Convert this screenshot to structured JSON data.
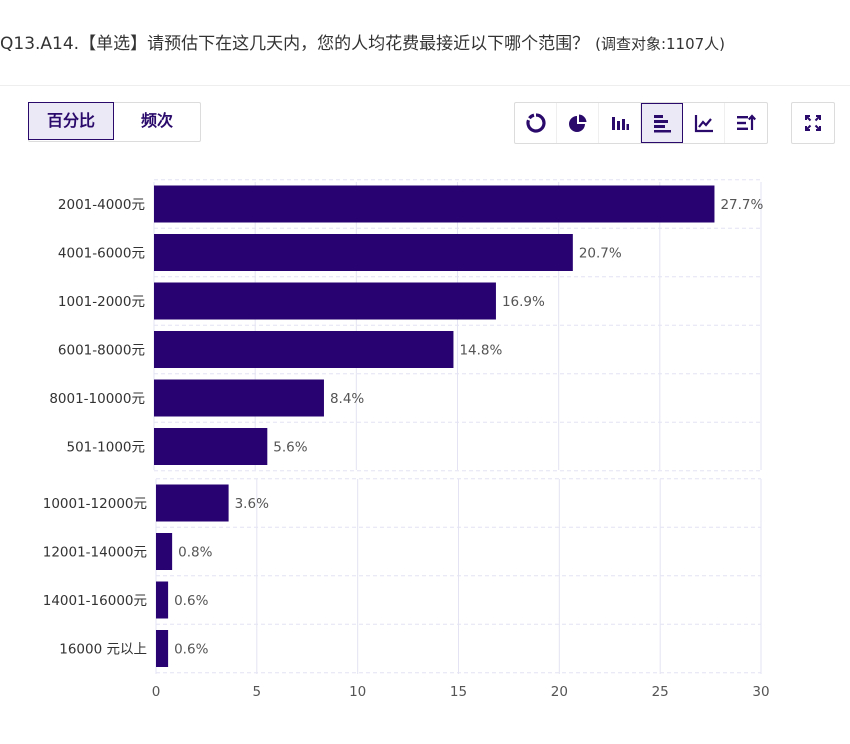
{
  "question": {
    "title": "Q13.A14.【单选】请预估下在这几天内，您的人均花费最接近以下哪个范围？",
    "audience": "(调查对象:1107人)"
  },
  "mode_toggle": {
    "percent_label": "百分比",
    "frequency_label": "频次",
    "active": "percent"
  },
  "toolbar": {
    "buttons": [
      "ring-chart-icon",
      "pie-chart-icon",
      "column-chart-icon",
      "bar-chart-icon",
      "line-chart-icon",
      "sort-icon"
    ],
    "active": "bar-chart-icon",
    "fullscreen": "fullscreen-icon"
  },
  "colors": {
    "bar": "#270270",
    "accent": "#2a0a6b",
    "grid": "#e3e3f3"
  },
  "chart_data": {
    "type": "bar",
    "orientation": "horizontal",
    "groups": [
      {
        "categories": [
          "2001-4000元",
          "4001-6000元",
          "1001-2000元",
          "6001-8000元",
          "8001-10000元",
          "501-1000元"
        ],
        "values": [
          27.7,
          20.7,
          16.9,
          14.8,
          8.4,
          5.6
        ],
        "value_labels": [
          "27.7%",
          "20.7%",
          "16.9%",
          "14.8%",
          "8.4%",
          "5.6%"
        ]
      },
      {
        "categories": [
          "10001-12000元",
          "12001-14000元",
          "14001-16000元",
          "16000 元以上"
        ],
        "values": [
          3.6,
          0.8,
          0.6,
          0.6
        ],
        "value_labels": [
          "3.6%",
          "0.8%",
          "0.6%",
          "0.6%"
        ]
      }
    ],
    "xlim": [
      0,
      30
    ],
    "xticks": [
      "0",
      "5",
      "10",
      "15",
      "20",
      "25",
      "30"
    ],
    "grid": true
  }
}
